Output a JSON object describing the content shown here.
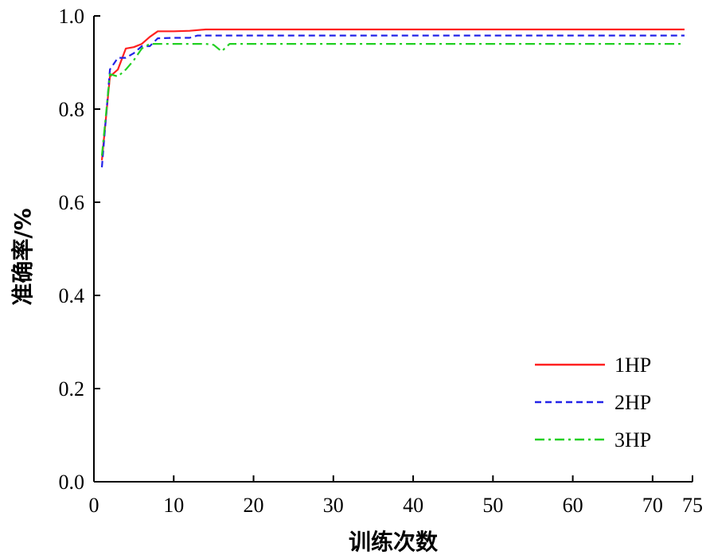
{
  "chart_data": {
    "type": "line",
    "title": "",
    "xlabel": "训练次数",
    "ylabel": "准确率/%",
    "xlim": [
      0,
      75
    ],
    "ylim": [
      0.0,
      1.0
    ],
    "xticks": [
      0,
      10,
      20,
      30,
      40,
      50,
      60,
      70,
      75
    ],
    "xtick_labels": [
      "0",
      "10",
      "20",
      "30",
      "40",
      "50",
      "60",
      "70",
      "75"
    ],
    "yticks": [
      0.0,
      0.2,
      0.4,
      0.6,
      0.8,
      1.0
    ],
    "ytick_labels": [
      "0.0",
      "0.2",
      "0.4",
      "0.6",
      "0.8",
      "1.0"
    ],
    "grid": false,
    "legend_position": "bottom-right",
    "series": [
      {
        "name": "1HP",
        "color": "#ff2020",
        "style": "solid",
        "x": [
          1,
          2,
          3,
          4,
          5,
          6,
          7,
          8,
          10,
          12,
          14,
          20,
          30,
          40,
          50,
          60,
          70,
          74
        ],
        "y": [
          0.69,
          0.87,
          0.885,
          0.93,
          0.933,
          0.94,
          0.955,
          0.967,
          0.967,
          0.968,
          0.971,
          0.971,
          0.971,
          0.971,
          0.971,
          0.971,
          0.971,
          0.971
        ]
      },
      {
        "name": "2HP",
        "color": "#2323e8",
        "style": "dashed",
        "x": [
          1,
          2,
          3,
          4,
          5,
          6,
          7,
          8,
          10,
          12,
          13,
          14,
          20,
          30,
          40,
          50,
          60,
          70,
          74
        ],
        "y": [
          0.675,
          0.885,
          0.91,
          0.91,
          0.92,
          0.935,
          0.935,
          0.952,
          0.953,
          0.953,
          0.958,
          0.958,
          0.958,
          0.958,
          0.958,
          0.958,
          0.958,
          0.958,
          0.958
        ]
      },
      {
        "name": "3HP",
        "color": "#22d022",
        "style": "dashdot",
        "x": [
          1,
          2,
          3,
          4,
          5,
          6,
          7,
          8,
          10,
          14,
          15,
          16,
          17,
          20,
          30,
          40,
          50,
          60,
          70,
          74
        ],
        "y": [
          0.7,
          0.875,
          0.87,
          0.885,
          0.905,
          0.93,
          0.94,
          0.94,
          0.94,
          0.94,
          0.938,
          0.924,
          0.94,
          0.94,
          0.94,
          0.94,
          0.94,
          0.94,
          0.94,
          0.94
        ]
      }
    ]
  }
}
